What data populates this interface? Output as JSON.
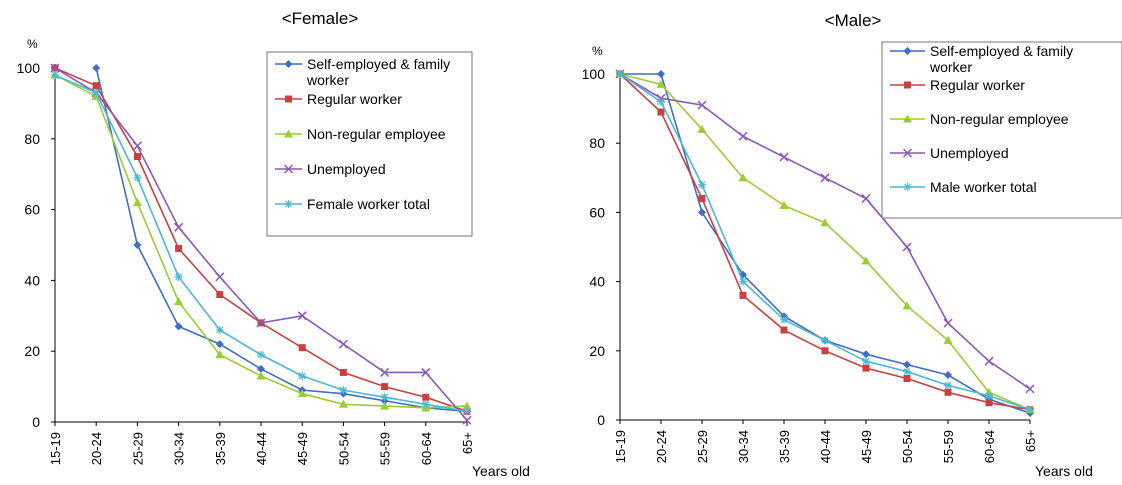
{
  "chart_data": [
    {
      "type": "line",
      "title": "<Female>",
      "ylabel": "%",
      "xlabel": "Years old",
      "ylim": [
        0,
        100
      ],
      "yticks": [
        0,
        20,
        40,
        60,
        80,
        100
      ],
      "categories": [
        "15-19",
        "20-24",
        "25-29",
        "30-34",
        "35-39",
        "40-44",
        "45-49",
        "50-54",
        "55-59",
        "60-64",
        "65+"
      ],
      "legend_position": "top-right",
      "series": [
        {
          "name": "Self-employed & family worker",
          "color": "#3d6fc4",
          "marker": "diamond",
          "values": [
            null,
            100,
            50,
            27,
            22,
            15,
            9,
            8,
            6,
            4,
            3
          ]
        },
        {
          "name": "Regular worker",
          "color": "#c94040",
          "marker": "square",
          "values": [
            100,
            95,
            75,
            49,
            36,
            28,
            21,
            14,
            10,
            7,
            3
          ]
        },
        {
          "name": "Non-regular employee",
          "color": "#9acd32",
          "marker": "triangle",
          "values": [
            98,
            92,
            62,
            34,
            19,
            13,
            8,
            5,
            4.5,
            4,
            4.5
          ]
        },
        {
          "name": "Unemployed",
          "color": "#8e56b8",
          "marker": "x",
          "values": [
            100,
            93,
            78,
            55,
            41,
            28,
            30,
            22,
            14,
            14,
            0.5
          ]
        },
        {
          "name": "Female worker total",
          "color": "#4ab8d8",
          "marker": "star",
          "values": [
            98,
            93,
            69,
            41,
            26,
            19,
            13,
            9,
            7,
            5,
            3
          ]
        }
      ]
    },
    {
      "type": "line",
      "title": "<Male>",
      "ylabel": "%",
      "xlabel": "Years old",
      "ylim": [
        0,
        100
      ],
      "yticks": [
        0,
        20,
        40,
        60,
        80,
        100
      ],
      "categories": [
        "15-19",
        "20-24",
        "25-29",
        "30-34",
        "35-39",
        "40-44",
        "45-49",
        "50-54",
        "55-59",
        "60-64",
        "65+"
      ],
      "legend_position": "top-right",
      "series": [
        {
          "name": "Self-employed & family worker",
          "color": "#3d6fc4",
          "marker": "diamond",
          "values": [
            100,
            100,
            60,
            42,
            30,
            23,
            19,
            16,
            13,
            6,
            2
          ]
        },
        {
          "name": "Regular worker",
          "color": "#c94040",
          "marker": "square",
          "values": [
            100,
            89,
            64,
            36,
            26,
            20,
            15,
            12,
            8,
            5,
            3
          ]
        },
        {
          "name": "Non-regular employee",
          "color": "#9acd32",
          "marker": "triangle",
          "values": [
            100,
            97,
            84,
            70,
            62,
            57,
            46,
            33,
            23,
            8,
            3
          ]
        },
        {
          "name": "Unemployed",
          "color": "#8e56b8",
          "marker": "x",
          "values": [
            100,
            93,
            91,
            82,
            76,
            70,
            64,
            50,
            28,
            17,
            9
          ]
        },
        {
          "name": "Male worker total",
          "color": "#4ab8d8",
          "marker": "star",
          "values": [
            100,
            92,
            68,
            40,
            29,
            23,
            17,
            14,
            10,
            7,
            3
          ]
        }
      ]
    }
  ]
}
